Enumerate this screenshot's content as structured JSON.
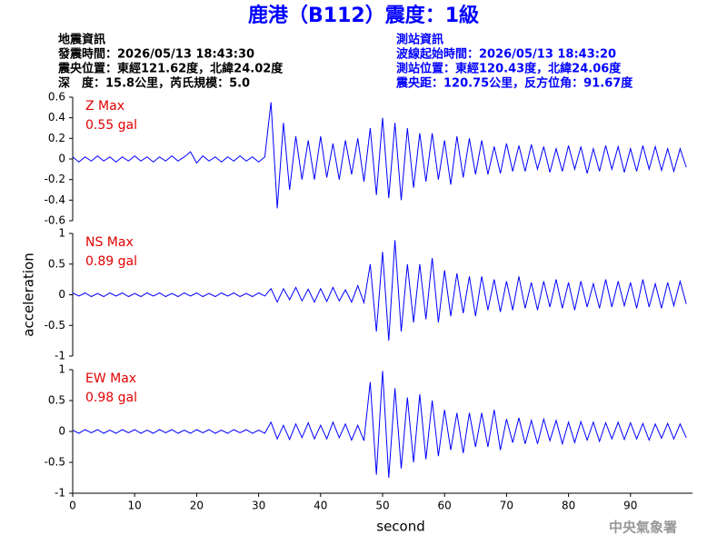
{
  "header": {
    "title": "鹿港（B112）震度：1級",
    "left": [
      "地震資訊",
      "發震時間：2026/05/13 18:43:30",
      "震央位置：東經121.62度，北緯24.02度",
      "深　度：15.8公里，芮氏規模：5.0"
    ],
    "right": [
      "測站資訊",
      "波線起始時間：2026/05/13 18:43:20",
      "測站位置：東經120.43度，北緯24.06度",
      "震央距：120.75公里，反方位角：91.67度"
    ]
  },
  "footer": "中央氣象署",
  "chart_data": [
    {
      "type": "line",
      "annotation": [
        "Z Max",
        "0.55 gal"
      ],
      "color": "#0000ff",
      "xlim": [
        0,
        100
      ],
      "ylim": [
        -0.6,
        0.6
      ],
      "yticks": [
        -0.6,
        -0.4,
        -0.2,
        0,
        0.2,
        0.4,
        0.6
      ],
      "x": [
        0,
        1,
        2,
        3,
        4,
        5,
        6,
        7,
        8,
        9,
        10,
        11,
        12,
        13,
        14,
        15,
        16,
        17,
        18,
        19,
        20,
        21,
        22,
        23,
        24,
        25,
        26,
        27,
        28,
        29,
        30,
        31,
        32,
        33,
        34,
        35,
        36,
        37,
        38,
        39,
        40,
        41,
        42,
        43,
        44,
        45,
        46,
        47,
        48,
        49,
        50,
        51,
        52,
        53,
        54,
        55,
        56,
        57,
        58,
        59,
        60,
        61,
        62,
        63,
        64,
        65,
        66,
        67,
        68,
        69,
        70,
        71,
        72,
        73,
        74,
        75,
        76,
        77,
        78,
        79,
        80,
        81,
        82,
        83,
        84,
        85,
        86,
        87,
        88,
        89,
        90,
        91,
        92,
        93,
        94,
        95,
        96,
        97,
        98,
        99
      ],
      "values": [
        0.02,
        -0.03,
        0.02,
        -0.02,
        0.03,
        -0.02,
        0.02,
        -0.03,
        0.02,
        -0.02,
        0.03,
        -0.02,
        0.02,
        -0.03,
        0.02,
        -0.02,
        0.03,
        -0.02,
        0.02,
        0.07,
        -0.04,
        0.03,
        -0.02,
        0.02,
        -0.03,
        0.02,
        -0.02,
        0.03,
        -0.02,
        0.02,
        -0.03,
        0.02,
        0.55,
        -0.48,
        0.35,
        -0.3,
        0.22,
        -0.2,
        0.18,
        -0.2,
        0.22,
        -0.18,
        0.15,
        -0.2,
        0.18,
        -0.15,
        0.2,
        -0.22,
        0.3,
        -0.35,
        0.4,
        -0.38,
        0.35,
        -0.4,
        0.3,
        -0.28,
        0.25,
        -0.22,
        0.25,
        -0.2,
        0.18,
        -0.25,
        0.22,
        -0.18,
        0.2,
        -0.15,
        0.18,
        -0.15,
        0.12,
        -0.14,
        0.15,
        -0.12,
        0.13,
        -0.12,
        0.14,
        -0.1,
        0.12,
        -0.13,
        0.1,
        -0.12,
        0.13,
        -0.1,
        0.12,
        -0.14,
        0.1,
        -0.12,
        0.13,
        -0.1,
        0.12,
        -0.13,
        0.1,
        -0.12,
        0.13,
        -0.1,
        0.12,
        -0.11,
        0.1,
        -0.12,
        0.1,
        -0.08
      ]
    },
    {
      "type": "line",
      "annotation": [
        "NS Max",
        "0.89 gal"
      ],
      "color": "#0000ff",
      "xlim": [
        0,
        100
      ],
      "ylim": [
        -1,
        1
      ],
      "yticks": [
        -1,
        -0.5,
        0,
        0.5,
        1
      ],
      "ylabel": "acceleration",
      "x": [
        0,
        1,
        2,
        3,
        4,
        5,
        6,
        7,
        8,
        9,
        10,
        11,
        12,
        13,
        14,
        15,
        16,
        17,
        18,
        19,
        20,
        21,
        22,
        23,
        24,
        25,
        26,
        27,
        28,
        29,
        30,
        31,
        32,
        33,
        34,
        35,
        36,
        37,
        38,
        39,
        40,
        41,
        42,
        43,
        44,
        45,
        46,
        47,
        48,
        49,
        50,
        51,
        52,
        53,
        54,
        55,
        56,
        57,
        58,
        59,
        60,
        61,
        62,
        63,
        64,
        65,
        66,
        67,
        68,
        69,
        70,
        71,
        72,
        73,
        74,
        75,
        76,
        77,
        78,
        79,
        80,
        81,
        82,
        83,
        84,
        85,
        86,
        87,
        88,
        89,
        90,
        91,
        92,
        93,
        94,
        95,
        96,
        97,
        98,
        99
      ],
      "values": [
        0.03,
        -0.02,
        0.03,
        -0.03,
        0.02,
        -0.03,
        0.03,
        -0.02,
        0.03,
        -0.03,
        0.02,
        -0.03,
        0.03,
        -0.02,
        0.03,
        -0.03,
        0.02,
        -0.03,
        0.03,
        -0.02,
        0.03,
        -0.03,
        0.02,
        -0.03,
        0.03,
        -0.02,
        0.03,
        -0.03,
        0.02,
        -0.03,
        0.03,
        -0.02,
        0.1,
        -0.12,
        0.1,
        -0.08,
        0.12,
        -0.1,
        0.09,
        -0.12,
        0.1,
        -0.11,
        0.12,
        -0.1,
        0.08,
        -0.12,
        0.15,
        -0.13,
        0.5,
        -0.6,
        0.7,
        -0.75,
        0.89,
        -0.6,
        0.5,
        -0.45,
        0.5,
        -0.4,
        0.6,
        -0.45,
        0.4,
        -0.35,
        0.35,
        -0.3,
        0.3,
        -0.35,
        0.3,
        -0.25,
        0.25,
        -0.28,
        0.22,
        -0.25,
        0.3,
        -0.22,
        0.2,
        -0.25,
        0.22,
        -0.2,
        0.25,
        -0.22,
        0.2,
        -0.25,
        0.22,
        -0.2,
        0.18,
        -0.22,
        0.25,
        -0.2,
        0.22,
        -0.18,
        0.2,
        -0.22,
        0.25,
        -0.2,
        0.18,
        -0.22,
        0.2,
        -0.18,
        0.22,
        -0.15
      ]
    },
    {
      "type": "line",
      "annotation": [
        "EW Max",
        "0.98 gal"
      ],
      "color": "#0000ff",
      "xlim": [
        0,
        100
      ],
      "ylim": [
        -1,
        1
      ],
      "yticks": [
        -1,
        -0.5,
        0,
        0.5,
        1
      ],
      "xticks": [
        0,
        10,
        20,
        30,
        40,
        50,
        60,
        70,
        80,
        90
      ],
      "xlabel": "second",
      "x": [
        0,
        1,
        2,
        3,
        4,
        5,
        6,
        7,
        8,
        9,
        10,
        11,
        12,
        13,
        14,
        15,
        16,
        17,
        18,
        19,
        20,
        21,
        22,
        23,
        24,
        25,
        26,
        27,
        28,
        29,
        30,
        31,
        32,
        33,
        34,
        35,
        36,
        37,
        38,
        39,
        40,
        41,
        42,
        43,
        44,
        45,
        46,
        47,
        48,
        49,
        50,
        51,
        52,
        53,
        54,
        55,
        56,
        57,
        58,
        59,
        60,
        61,
        62,
        63,
        64,
        65,
        66,
        67,
        68,
        69,
        70,
        71,
        72,
        73,
        74,
        75,
        76,
        77,
        78,
        79,
        80,
        81,
        82,
        83,
        84,
        85,
        86,
        87,
        88,
        89,
        90,
        91,
        92,
        93,
        94,
        95,
        96,
        97,
        98,
        99
      ],
      "values": [
        0.02,
        -0.03,
        0.03,
        -0.02,
        0.03,
        -0.03,
        0.02,
        -0.03,
        0.03,
        -0.02,
        0.03,
        -0.03,
        0.02,
        -0.03,
        0.03,
        -0.02,
        0.03,
        -0.03,
        0.02,
        -0.03,
        0.03,
        -0.02,
        0.03,
        -0.03,
        0.02,
        -0.03,
        0.03,
        -0.02,
        0.03,
        -0.03,
        0.02,
        -0.03,
        0.15,
        -0.12,
        0.1,
        -0.13,
        0.12,
        -0.1,
        0.14,
        -0.12,
        0.1,
        -0.12,
        0.15,
        -0.1,
        0.12,
        -0.14,
        0.1,
        -0.15,
        0.8,
        -0.7,
        0.98,
        -0.75,
        0.7,
        -0.6,
        0.55,
        -0.5,
        0.6,
        -0.45,
        0.5,
        -0.4,
        0.35,
        -0.3,
        0.3,
        -0.35,
        0.3,
        -0.25,
        0.3,
        -0.25,
        0.35,
        -0.3,
        0.2,
        -0.18,
        0.22,
        -0.2,
        0.18,
        -0.2,
        0.2,
        -0.15,
        0.18,
        -0.2,
        0.15,
        -0.18,
        0.16,
        -0.14,
        0.15,
        -0.16,
        0.14,
        -0.12,
        0.15,
        -0.13,
        0.14,
        -0.12,
        0.13,
        -0.14,
        0.12,
        -0.11,
        0.13,
        -0.12,
        0.12,
        -0.1
      ]
    }
  ]
}
